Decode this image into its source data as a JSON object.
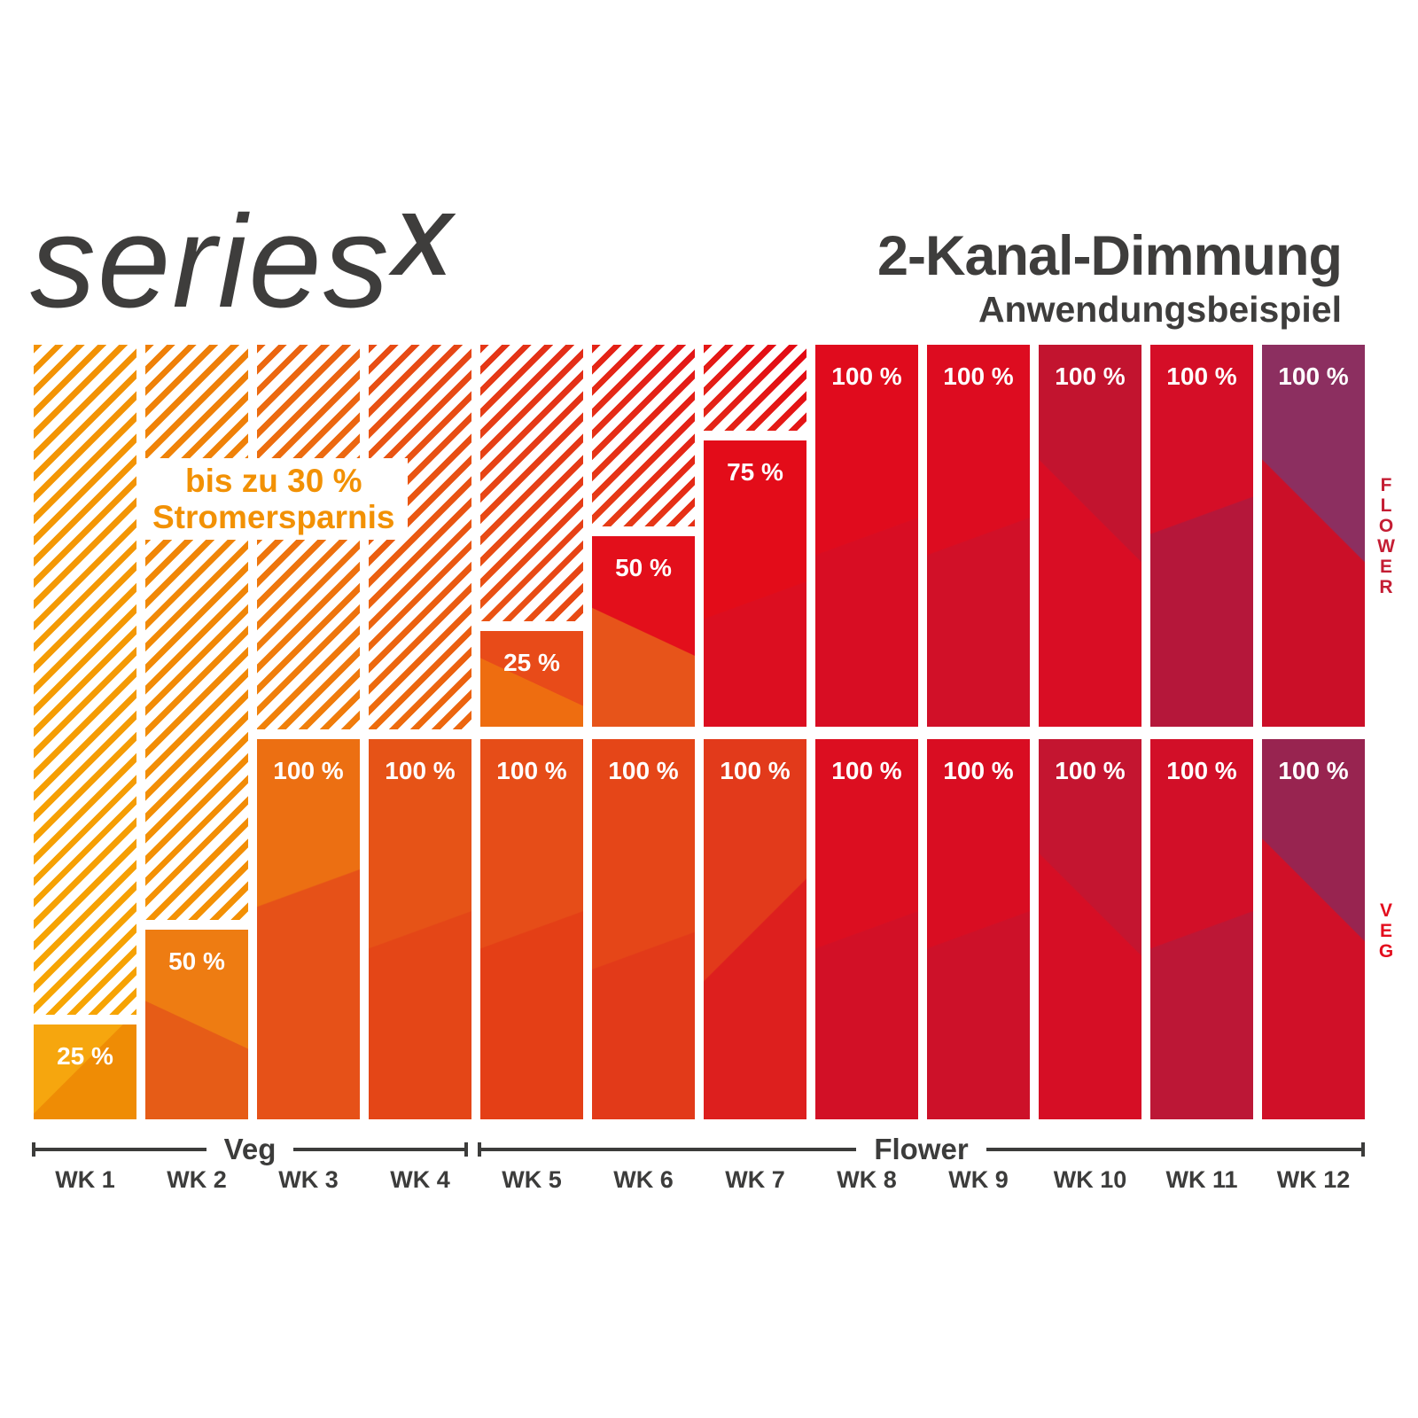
{
  "logo": {
    "series": "series",
    "x": "X"
  },
  "header": {
    "title": "2-Kanal-Dimmung",
    "subtitle": "Anwendungsbeispiel"
  },
  "badge": {
    "line1": "bis zu 30 %",
    "line2": "Stromersparnis",
    "text_color": "#f29104",
    "bg_color": "#ffffff"
  },
  "side_labels": {
    "flower": "FLOWER",
    "flower_color": "#c41d33",
    "veg": "VEG",
    "veg_color": "#e30d1d"
  },
  "axis": {
    "veg_label": "Veg",
    "flower_label": "Flower",
    "color": "#3c3c3b",
    "week_labels": [
      "WK 1",
      "WK 2",
      "WK 3",
      "WK 4",
      "WK 5",
      "WK 6",
      "WK 7",
      "WK 8",
      "WK 9",
      "WK 10",
      "WK 11",
      "WK 12"
    ]
  },
  "colors": {
    "text_dark": "#3e3d3c",
    "white": "#ffffff"
  },
  "chart_data": {
    "type": "bar",
    "unit": "%",
    "value_label_suffix": " %",
    "ylim": [
      0,
      100
    ],
    "categories": [
      "WK 1",
      "WK 2",
      "WK 3",
      "WK 4",
      "WK 5",
      "WK 6",
      "WK 7",
      "WK 8",
      "WK 9",
      "WK 10",
      "WK 11",
      "WK 12"
    ],
    "series": [
      {
        "name": "Flower",
        "values": [
          null,
          null,
          null,
          null,
          25,
          50,
          75,
          100,
          100,
          100,
          100,
          100
        ],
        "colors": [
          null,
          null,
          null,
          null,
          "#e84b19",
          "#e30f1b",
          "#e30c19",
          "#e00b1d",
          "#dd0c20",
          "#d90d24",
          "#d50e27",
          "#cb0f28"
        ],
        "accents": [
          null,
          null,
          null,
          null,
          "#ee6d10",
          "#e7541a",
          "#dc0e20",
          "#d80d23",
          "#d11028",
          "#c2142f",
          "#b5173a",
          "#8c2f60"
        ]
      },
      {
        "name": "Veg",
        "values": [
          25,
          50,
          100,
          100,
          100,
          100,
          100,
          100,
          100,
          100,
          100,
          100
        ],
        "colors": [
          "#f6a60e",
          "#ee7c12",
          "#ec6f12",
          "#e65317",
          "#e64d18",
          "#e54618",
          "#e23a1b",
          "#dc0e20",
          "#d90d22",
          "#d60e25",
          "#d20f28",
          "#d01028"
        ],
        "accents": [
          "#ef8c05",
          "#e65c17",
          "#e65118",
          "#e44617",
          "#e43f16",
          "#e23a19",
          "#dd1f1e",
          "#d21026",
          "#cd1129",
          "#c41530",
          "#bc1736",
          "#982450"
        ]
      }
    ],
    "stripes": {
      "colors_bottom": [
        "#f7a603",
        "#f49304",
        "#f1830a",
        "#ee6e0d",
        "#ea5513",
        "#e73f16",
        "#e42818"
      ],
      "colors_top": [
        "#f29004",
        "#ee7d09",
        "#ea5f12",
        "#e64416",
        "#e32b18",
        "#e31517",
        "#e30613"
      ]
    }
  }
}
